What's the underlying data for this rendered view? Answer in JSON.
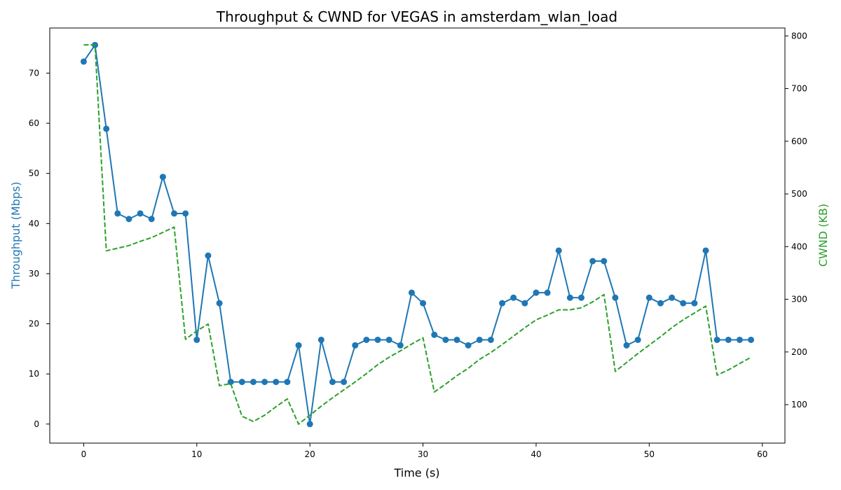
{
  "chart_data": {
    "type": "line",
    "title": "Throughput & CWND for VEGAS in amsterdam_wlan_load",
    "xlabel": "Time (s)",
    "ylabel_left": "Throughput (Mbps)",
    "ylabel_right": "CWND (KB)",
    "xlim": [
      -3,
      62
    ],
    "ylim_left": [
      -3.8,
      79
    ],
    "ylim_right": [
      27,
      815
    ],
    "x_ticks": [
      0,
      10,
      20,
      30,
      40,
      50,
      60
    ],
    "y_left_ticks": [
      0,
      10,
      20,
      30,
      40,
      50,
      60,
      70
    ],
    "y_right_ticks": [
      100,
      200,
      300,
      400,
      500,
      600,
      700,
      800
    ],
    "grid": false,
    "colors": {
      "throughput": "#1f77b4",
      "cwnd": "#2ca02c"
    },
    "series": [
      {
        "name": "Throughput (Mbps)",
        "axis": "left",
        "style": "solid-markers",
        "x": [
          0,
          1,
          2,
          3,
          4,
          5,
          6,
          7,
          8,
          9,
          10,
          11,
          12,
          13,
          14,
          15,
          16,
          17,
          18,
          19,
          20,
          21,
          22,
          23,
          24,
          25,
          26,
          27,
          28,
          29,
          30,
          31,
          32,
          33,
          34,
          35,
          36,
          37,
          38,
          39,
          40,
          41,
          42,
          43,
          44,
          45,
          46,
          47,
          48,
          49,
          50,
          51,
          52,
          53,
          54,
          55,
          56,
          57,
          58,
          59
        ],
        "values": [
          72.3,
          75.6,
          58.9,
          42.0,
          40.9,
          42.0,
          40.9,
          49.3,
          42.0,
          42.0,
          16.8,
          33.6,
          24.1,
          8.4,
          8.4,
          8.4,
          8.4,
          8.4,
          8.4,
          15.7,
          0.0,
          16.8,
          8.4,
          8.4,
          15.7,
          16.8,
          16.8,
          16.8,
          15.7,
          26.2,
          24.1,
          17.8,
          16.8,
          16.8,
          15.7,
          16.8,
          16.8,
          24.1,
          25.2,
          24.1,
          26.2,
          26.2,
          34.6,
          25.2,
          25.2,
          32.5,
          32.5,
          25.2,
          15.7,
          16.8,
          25.2,
          24.1,
          25.2,
          24.1,
          24.1,
          34.6,
          16.8,
          16.8,
          16.8,
          16.8
        ]
      },
      {
        "name": "CWND (KB)",
        "axis": "right",
        "style": "dashed",
        "x": [
          0,
          1,
          2,
          3,
          4,
          5,
          6,
          7,
          8,
          9,
          10,
          11,
          12,
          13,
          14,
          15,
          16,
          17,
          18,
          19,
          20,
          21,
          22,
          23,
          24,
          25,
          26,
          27,
          28,
          29,
          30,
          31,
          32,
          33,
          34,
          35,
          36,
          37,
          38,
          39,
          40,
          41,
          42,
          43,
          44,
          45,
          46,
          47,
          48,
          49,
          50,
          51,
          52,
          53,
          54,
          55,
          56,
          57,
          59
        ],
        "values": [
          783,
          783,
          392,
          397,
          402,
          410,
          417,
          427,
          437,
          224,
          240,
          253,
          136,
          140,
          78,
          68,
          80,
          96,
          111,
          63,
          80,
          97,
          113,
          128,
          143,
          159,
          176,
          190,
          202,
          215,
          227,
          124,
          139,
          155,
          169,
          186,
          199,
          214,
          230,
          246,
          261,
          270,
          280,
          280,
          284,
          295,
          309,
          163,
          180,
          197,
          213,
          229,
          246,
          261,
          274,
          287,
          156,
          166,
          190
        ]
      }
    ]
  }
}
